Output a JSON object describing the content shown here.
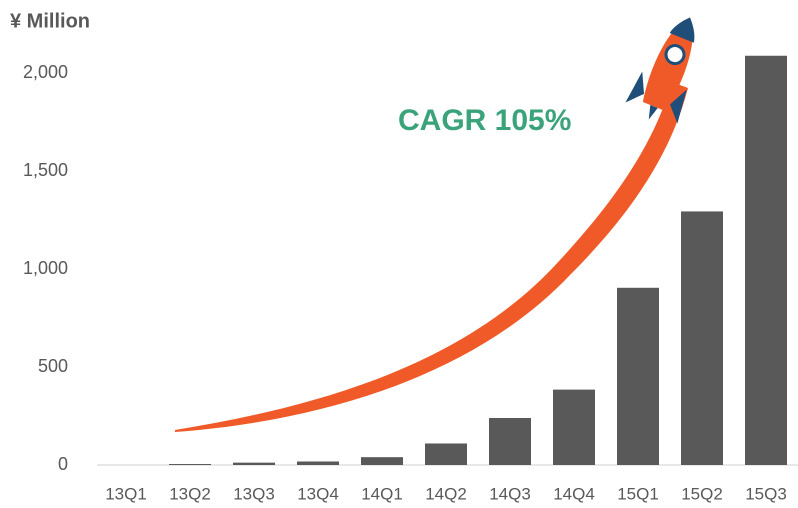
{
  "chart_data": {
    "type": "bar",
    "title": "¥ Million",
    "annotation": "CAGR 105%",
    "categories": [
      "13Q1",
      "13Q2",
      "13Q3",
      "13Q4",
      "14Q1",
      "14Q2",
      "14Q3",
      "14Q4",
      "15Q1",
      "15Q2",
      "15Q3"
    ],
    "values": [
      0,
      5,
      12,
      18,
      40,
      110,
      240,
      385,
      905,
      1295,
      2090
    ],
    "color": "#595959",
    "ylim": [
      0,
      2150
    ],
    "yticks": [
      0,
      500,
      {
        "value": 1000,
        "label": "1,000"
      },
      {
        "value": 1500,
        "label": "1,500"
      },
      {
        "value": 2000,
        "label": "2,000"
      }
    ],
    "grid": false
  }
}
